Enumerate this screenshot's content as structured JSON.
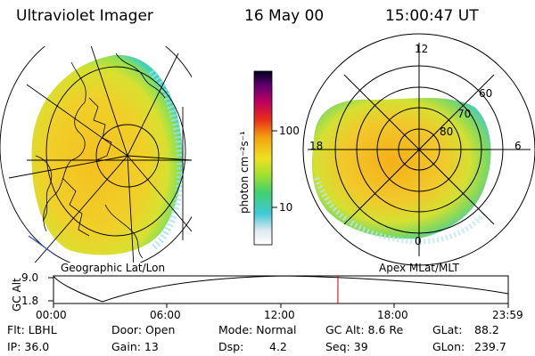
{
  "header": {
    "instrument": "Ultraviolet Imager",
    "date": "16 May 00",
    "time": "15:00:47 UT"
  },
  "colorbar": {
    "unit_label": "photon cm⁻²s⁻¹",
    "ticks": [
      "100",
      "10"
    ]
  },
  "left_panel": {
    "caption": "Geographic Lat/Lon"
  },
  "right_panel": {
    "caption": "Apex MLat/MLT",
    "mlt_labels": {
      "top": "12",
      "left": "18",
      "right": "6",
      "bottom": "0"
    },
    "lat_labels": [
      "60",
      "70",
      "80"
    ]
  },
  "timeline": {
    "ylabel": "GC Alt",
    "yticks": [
      "9.0",
      "1.8"
    ],
    "xticks": [
      "00:00",
      "06:00",
      "12:00",
      "18:00",
      "23:59"
    ],
    "marker_time_hours": 15.01
  },
  "info": {
    "row1": {
      "flt": "Flt: LBHL",
      "door": "Door: Open",
      "mode": "Mode: Normal",
      "gcalt": "GC Alt: 8.6 Re",
      "glat_label": "GLat:",
      "glat_value": "88.2"
    },
    "row2": {
      "ip": "IP: 36.0",
      "gain": "Gain: 13",
      "dsp_label": "Dsp:",
      "dsp_value": "4.2",
      "seq": "Seq: 39",
      "glon_label": "GLon:",
      "glon_value": "239.7"
    }
  }
}
